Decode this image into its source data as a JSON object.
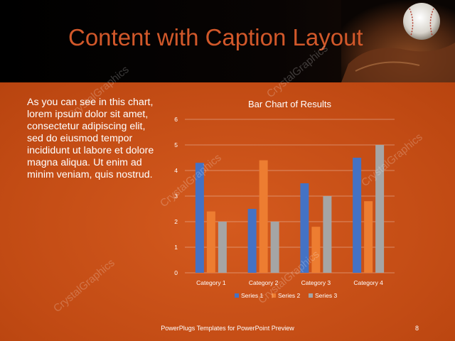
{
  "slide": {
    "title": "Content with Caption Layout",
    "caption": "As you can see in this chart, lorem ipsum dolor sit amet, consectetur adipiscing elit, sed do eiusmod tempor incididunt ut labore et dolore magna aliqua. Ut enim ad minim veniam, quis nostrud.",
    "footer": "PowerPlugs Templates for PowerPoint Preview",
    "page_number": "8",
    "watermark": "CrystalGraphics"
  },
  "colors": {
    "background": "#c9521a",
    "title": "#d2582a",
    "series1": "#4472c4",
    "series2": "#ed7d31",
    "series3": "#a5a5a5"
  },
  "chart_data": {
    "type": "bar",
    "title": "Bar Chart of Results",
    "categories": [
      "Category 1",
      "Category 2",
      "Category 3",
      "Category 4"
    ],
    "series": [
      {
        "name": "Series 1",
        "values": [
          4.3,
          2.5,
          3.5,
          4.5
        ]
      },
      {
        "name": "Series 2",
        "values": [
          2.4,
          4.4,
          1.8,
          2.8
        ]
      },
      {
        "name": "Series 3",
        "values": [
          2,
          2,
          3,
          5
        ]
      }
    ],
    "ylim": [
      0,
      6
    ],
    "yticks": [
      "0",
      "1",
      "2",
      "3",
      "4",
      "5",
      "6"
    ],
    "grid": true,
    "legend": "bottom"
  }
}
